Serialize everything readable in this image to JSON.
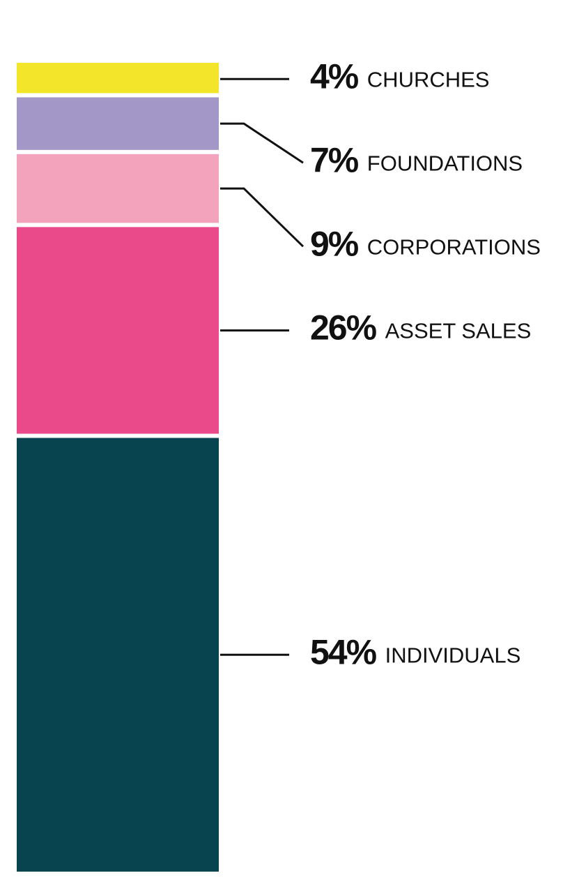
{
  "chart_data": {
    "type": "bar",
    "stacked": true,
    "categories": [
      "CHURCHES",
      "FOUNDATIONS",
      "CORPORATIONS",
      "ASSET SALES",
      "INDIVIDUALS"
    ],
    "values": [
      4,
      7,
      9,
      26,
      54
    ],
    "value_labels": [
      "4%",
      "7%",
      "9%",
      "26%",
      "54%"
    ],
    "colors": [
      "#f2e52a",
      "#a397c7",
      "#f4a3bd",
      "#ea4a8a",
      "#08444f"
    ]
  }
}
